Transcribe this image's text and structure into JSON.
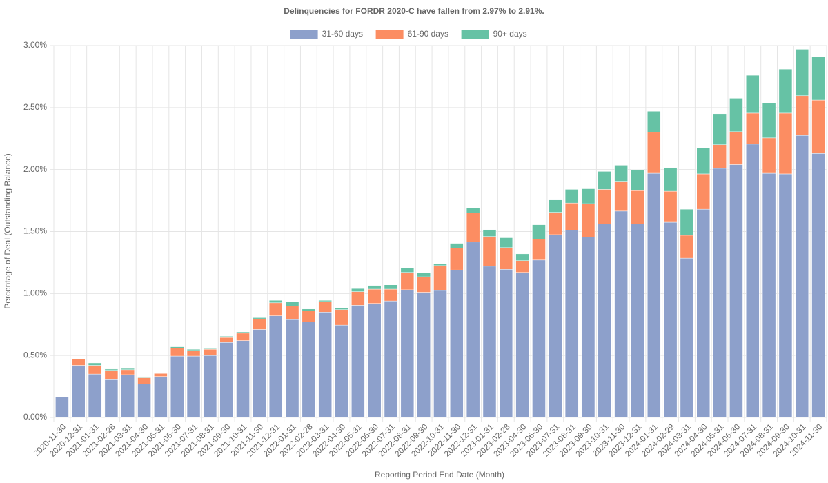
{
  "chart_data": {
    "type": "stacked_bar",
    "title": "Delinquencies for FORDR 2020-C have fallen from 2.97% to 2.91%.",
    "x_label": "Reporting Period End Date (Month)",
    "y_label": "Percentage of Deal (Outstanding Balance)",
    "categories": [
      "2020-11-30",
      "2020-12-31",
      "2021-01-31",
      "2021-02-28",
      "2021-03-31",
      "2021-04-30",
      "2021-05-31",
      "2021-06-30",
      "2021-07-31",
      "2021-08-31",
      "2021-09-30",
      "2021-10-31",
      "2021-11-30",
      "2021-12-31",
      "2022-01-31",
      "2022-02-28",
      "2022-03-31",
      "2022-04-30",
      "2022-05-31",
      "2022-06-30",
      "2022-07-31",
      "2022-08-31",
      "2022-09-30",
      "2022-10-31",
      "2022-11-30",
      "2022-12-31",
      "2023-01-31",
      "2023-02-28",
      "2023-04-30",
      "2023-06-30",
      "2023-07-31",
      "2023-08-31",
      "2023-09-30",
      "2023-10-31",
      "2023-11-30",
      "2023-12-31",
      "2024-01-31",
      "2024-02-29",
      "2024-03-31",
      "2024-04-30",
      "2024-05-31",
      "2024-06-30",
      "2024-07-31",
      "2024-08-31",
      "2024-09-30",
      "2024-10-31",
      "2024-11-30"
    ],
    "series": [
      {
        "name": "31-60 days",
        "color": "#8da0cb",
        "values": [
          0.167,
          0.42,
          0.35,
          0.31,
          0.345,
          0.27,
          0.33,
          0.495,
          0.495,
          0.5,
          0.605,
          0.62,
          0.71,
          0.82,
          0.79,
          0.77,
          0.85,
          0.745,
          0.905,
          0.92,
          0.94,
          1.03,
          1.01,
          1.025,
          1.19,
          1.415,
          1.22,
          1.195,
          1.17,
          1.27,
          1.475,
          1.51,
          1.455,
          1.56,
          1.665,
          1.56,
          1.97,
          1.575,
          1.285,
          1.68,
          2.01,
          2.04,
          2.205,
          1.97,
          1.965,
          2.275,
          2.13
        ]
      },
      {
        "name": "61-90 days",
        "color": "#fc8d62",
        "values": [
          0,
          0.05,
          0.07,
          0.07,
          0.04,
          0.05,
          0.025,
          0.065,
          0.045,
          0.05,
          0.04,
          0.06,
          0.085,
          0.105,
          0.11,
          0.09,
          0.085,
          0.125,
          0.11,
          0.115,
          0.095,
          0.14,
          0.125,
          0.2,
          0.175,
          0.235,
          0.24,
          0.175,
          0.095,
          0.17,
          0.18,
          0.22,
          0.27,
          0.28,
          0.235,
          0.27,
          0.33,
          0.25,
          0.185,
          0.285,
          0.19,
          0.265,
          0.25,
          0.285,
          0.49,
          0.32,
          0.43
        ]
      },
      {
        "name": "90+ days",
        "color": "#66c2a5",
        "values": [
          0,
          0,
          0.02,
          0.01,
          0.01,
          0.01,
          0.005,
          0.01,
          0.01,
          0.005,
          0.01,
          0.01,
          0.01,
          0.02,
          0.035,
          0.015,
          0.01,
          0.015,
          0.025,
          0.03,
          0.035,
          0.035,
          0.03,
          0.015,
          0.04,
          0.04,
          0.055,
          0.08,
          0.055,
          0.115,
          0.1,
          0.11,
          0.12,
          0.145,
          0.135,
          0.17,
          0.17,
          0.19,
          0.21,
          0.21,
          0.25,
          0.27,
          0.305,
          0.28,
          0.355,
          0.375,
          0.35
        ]
      }
    ],
    "ylim": [
      0,
      3
    ],
    "yticks": [
      {
        "value": 0,
        "label": "0.00%"
      },
      {
        "value": 0.5,
        "label": "0.50%"
      },
      {
        "value": 1,
        "label": "1.00%"
      },
      {
        "value": 1.5,
        "label": "1.50%"
      },
      {
        "value": 2,
        "label": "2.00%"
      },
      {
        "value": 2.5,
        "label": "2.50%"
      },
      {
        "value": 3,
        "label": "3.00%"
      }
    ],
    "grid": true
  }
}
